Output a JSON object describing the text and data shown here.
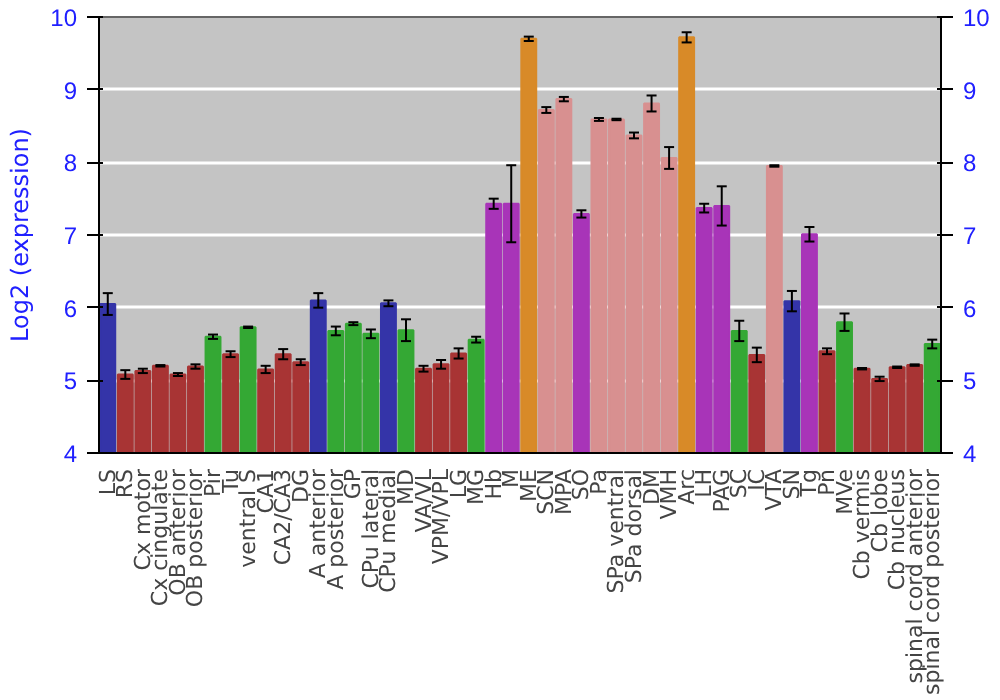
{
  "chart_data": {
    "type": "bar",
    "ylabel": "Log2 (expression)",
    "ylim": [
      4,
      10
    ],
    "yticks": [
      4,
      5,
      6,
      7,
      8,
      9,
      10
    ],
    "y2lim": [
      4,
      10
    ],
    "y2ticks": [
      4,
      5,
      6,
      7,
      8,
      9,
      10
    ],
    "grid": "y",
    "categories": [
      "LS",
      "RS",
      "Cx motor",
      "Cx cingulate",
      "OB anterior",
      "OB posterior",
      "Pir",
      "Tu",
      "ventral S",
      "CA1",
      "CA2/CA3",
      "DG",
      "A anterior",
      "A posterior",
      "GP",
      "CPu lateral",
      "CPu medial",
      "MD",
      "VA/VL",
      "VPM/VPL",
      "LG",
      "MG",
      "Hb",
      "M",
      "ME",
      "SCN",
      "MPA",
      "SO",
      "Pa",
      "SPa ventral",
      "SPa dorsal",
      "DM",
      "VMH",
      "Arc",
      "LH",
      "PAG",
      "SC",
      "IC",
      "VTA",
      "SN",
      "Tg",
      "Pn",
      "MVe",
      "Cb vermis",
      "Cb lobe",
      "Cb nucleus",
      "spinal cord anterior",
      "spinal cord posterior"
    ],
    "values": [
      6.05,
      5.08,
      5.13,
      5.2,
      5.08,
      5.19,
      5.6,
      5.36,
      5.73,
      5.15,
      5.36,
      5.25,
      6.1,
      5.68,
      5.78,
      5.64,
      6.06,
      5.69,
      5.16,
      5.22,
      5.37,
      5.56,
      7.43,
      7.43,
      9.7,
      8.72,
      8.87,
      7.29,
      8.59,
      8.59,
      8.37,
      8.81,
      8.06,
      9.72,
      7.37,
      7.4,
      5.68,
      5.35,
      7.95,
      6.09,
      7.01,
      5.4,
      5.8,
      5.16,
      5.02,
      5.18,
      5.21,
      5.5
    ],
    "errors": [
      0.15,
      0.06,
      0.03,
      0.01,
      0.02,
      0.03,
      0.03,
      0.04,
      0.01,
      0.05,
      0.07,
      0.04,
      0.1,
      0.06,
      0.02,
      0.06,
      0.04,
      0.15,
      0.04,
      0.06,
      0.07,
      0.04,
      0.07,
      0.53,
      0.03,
      0.04,
      0.03,
      0.05,
      0.02,
      0.01,
      0.04,
      0.11,
      0.15,
      0.07,
      0.06,
      0.27,
      0.14,
      0.1,
      0.01,
      0.14,
      0.1,
      0.04,
      0.12,
      0.01,
      0.03,
      0.01,
      0.01,
      0.06
    ],
    "colors": [
      "#3434a8",
      "#a83434",
      "#a83434",
      "#a83434",
      "#a83434",
      "#a83434",
      "#34a834",
      "#a83434",
      "#34a834",
      "#a83434",
      "#a83434",
      "#a83434",
      "#3434a8",
      "#34a834",
      "#34a834",
      "#34a834",
      "#3434a8",
      "#34a834",
      "#a83434",
      "#a83434",
      "#a83434",
      "#34a834",
      "#a834b8",
      "#a834b8",
      "#d88a28",
      "#d89090",
      "#d89090",
      "#a834b8",
      "#d89090",
      "#d89090",
      "#d89090",
      "#d89090",
      "#d89090",
      "#d88a28",
      "#a834b8",
      "#a834b8",
      "#34a834",
      "#a83434",
      "#d89090",
      "#3434a8",
      "#a834b8",
      "#a83434",
      "#34a834",
      "#a83434",
      "#a83434",
      "#a83434",
      "#a83434",
      "#34a834"
    ]
  }
}
